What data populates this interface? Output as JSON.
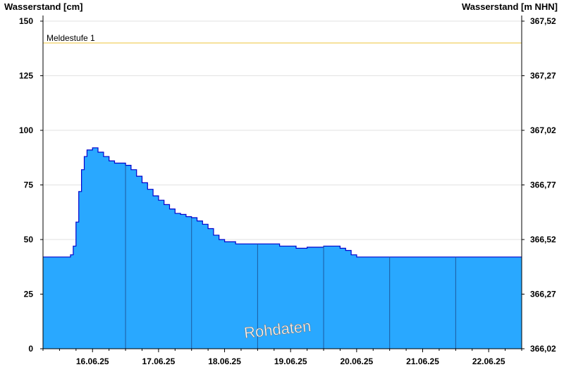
{
  "chart_data": {
    "type": "area",
    "left_axis_title": "Wasserstand [cm]",
    "right_axis_title": "Wasserstand [m NHN]",
    "y_left": {
      "min": 0,
      "max": 150,
      "ticks": [
        0,
        25,
        50,
        75,
        100,
        125,
        150
      ],
      "tick_labels": [
        "0",
        "25",
        "50",
        "75",
        "100",
        "125",
        "150"
      ]
    },
    "y_right": {
      "min": 366.02,
      "max": 367.52,
      "tick_labels": [
        "366,02",
        "366,27",
        "366,52",
        "366,77",
        "367,02",
        "367,27",
        "367,52"
      ]
    },
    "x_axis": {
      "start_day": "15.06.25 18:00",
      "end_day": "22.06.25 24:00",
      "day_labels": [
        "16.06.25",
        "17.06.25",
        "18.06.25",
        "19.06.25",
        "20.06.25",
        "21.06.25",
        "22.06.25"
      ]
    },
    "grid": true,
    "threshold": {
      "label": "Meldestufe 1",
      "value": 140,
      "color": "#f0d060"
    },
    "fill_color": "#29a8ff",
    "line_color": "#0000cc",
    "watermark": "Rohdaten",
    "series": [
      {
        "x": [
          "15.06.25 18:00",
          "16.06.25 03:00",
          "16.06.25 04:00",
          "16.06.25 05:00",
          "16.06.25 06:00",
          "16.06.25 07:00",
          "16.06.25 08:00",
          "16.06.25 09:00",
          "16.06.25 10:00",
          "16.06.25 12:00",
          "16.06.25 14:00",
          "16.06.25 16:00",
          "16.06.25 18:00",
          "16.06.25 20:00",
          "16.06.25 22:00",
          "17.06.25 00:00",
          "17.06.25 02:00",
          "17.06.25 04:00",
          "17.06.25 06:00",
          "17.06.25 08:00",
          "17.06.25 10:00",
          "17.06.25 12:00",
          "17.06.25 14:00",
          "17.06.25 16:00",
          "17.06.25 18:00",
          "17.06.25 20:00",
          "17.06.25 22:00",
          "18.06.25 00:00",
          "18.06.25 02:00",
          "18.06.25 04:00",
          "18.06.25 06:00",
          "18.06.25 08:00",
          "18.06.25 10:00",
          "18.06.25 12:00",
          "18.06.25 16:00",
          "19.06.25 00:00",
          "19.06.25 06:00",
          "19.06.25 08:00",
          "19.06.25 12:00",
          "19.06.25 14:00",
          "19.06.25 16:00",
          "19.06.25 18:00",
          "19.06.25 20:00",
          "19.06.25 22:00",
          "20.06.25 00:00",
          "20.06.25 04:00",
          "20.06.25 06:00",
          "20.06.25 08:00",
          "20.06.25 10:00",
          "20.06.25 12:00",
          "22.06.25 24:00"
        ],
        "values": [
          42,
          42,
          43,
          47,
          58,
          72,
          82,
          88,
          91,
          92,
          90,
          88,
          86,
          85,
          85,
          84,
          82,
          79,
          76,
          73,
          70,
          68,
          66,
          64,
          62,
          61.5,
          60.5,
          60,
          58.5,
          57,
          55,
          52,
          50,
          49,
          48,
          48,
          48,
          47,
          47,
          46,
          46,
          46.5,
          46.5,
          46.5,
          47,
          47,
          46,
          45,
          43,
          42,
          42
        ]
      }
    ]
  }
}
